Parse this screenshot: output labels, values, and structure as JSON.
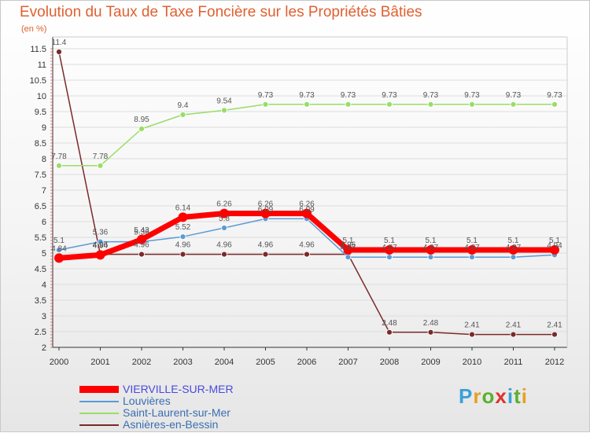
{
  "chart_data": {
    "type": "line",
    "title": "Evolution du Taux de Taxe Foncière sur les Propriétés Bâties",
    "ylabel": "(en %)",
    "xlabel": "",
    "x": [
      "2000",
      "2001",
      "2002",
      "2003",
      "2004",
      "2005",
      "2006",
      "2007",
      "2008",
      "2009",
      "2010",
      "2011",
      "2012"
    ],
    "ylim": [
      2,
      11.5
    ],
    "yticks": [
      "2",
      "2.5",
      "3",
      "3.5",
      "4",
      "4.5",
      "5",
      "5.5",
      "6",
      "6.5",
      "7",
      "7.5",
      "8",
      "8.5",
      "9",
      "9.5",
      "10",
      "10.5",
      "11",
      "11.5"
    ],
    "grid": "horizontal",
    "series": [
      {
        "name": "VIERVILLE-SUR-MER",
        "color": "#ff0000",
        "values": [
          4.84,
          4.94,
          5.43,
          6.14,
          6.26,
          6.26,
          6.26,
          5.1,
          5.1,
          5.1,
          5.1,
          5.1,
          5.1
        ]
      },
      {
        "name": "Louvières",
        "color": "#5b9bd5",
        "values": [
          5.1,
          5.36,
          5.36,
          5.52,
          5.8,
          6.09,
          6.09,
          4.87,
          4.87,
          4.87,
          4.87,
          4.87,
          4.94
        ]
      },
      {
        "name": "Saint-Laurent-sur-Mer",
        "color": "#99dd66",
        "values": [
          7.78,
          7.78,
          8.95,
          9.4,
          9.54,
          9.73,
          9.73,
          9.73,
          9.73,
          9.73,
          9.73,
          9.73,
          9.73
        ]
      },
      {
        "name": "Asnières-en-Bessin",
        "color": "#7a2a2a",
        "values": [
          11.4,
          4.96,
          4.96,
          4.96,
          4.96,
          4.96,
          4.96,
          4.96,
          2.48,
          2.48,
          2.41,
          2.41,
          2.41
        ]
      }
    ],
    "data_labels": [
      [
        "4.84",
        "4.94",
        "5.43",
        "6.14",
        "6.26",
        "6.26",
        "6.26",
        "5.1",
        "5.1",
        "5.1",
        "5.1",
        "5.1",
        "5.1"
      ],
      [
        "5.1",
        "5.36",
        "5.36",
        "5.52",
        "5.8",
        "6.09",
        "6.09",
        "4.87",
        "4.87",
        "4.87",
        "4.87",
        "4.87",
        "4.94"
      ],
      [
        "7.78",
        "7.78",
        "8.95",
        "9.4",
        "9.54",
        "9.73",
        "9.73",
        "9.73",
        "9.73",
        "9.73",
        "9.73",
        "9.73",
        "9.73"
      ],
      [
        "11.4",
        "4.96",
        "4.96",
        "4.96",
        "4.96",
        "4.96",
        "4.96",
        "4.96",
        "2.48",
        "2.48",
        "2.41",
        "2.41",
        "2.41"
      ]
    ]
  },
  "logo": {
    "text": "Proxiti"
  }
}
